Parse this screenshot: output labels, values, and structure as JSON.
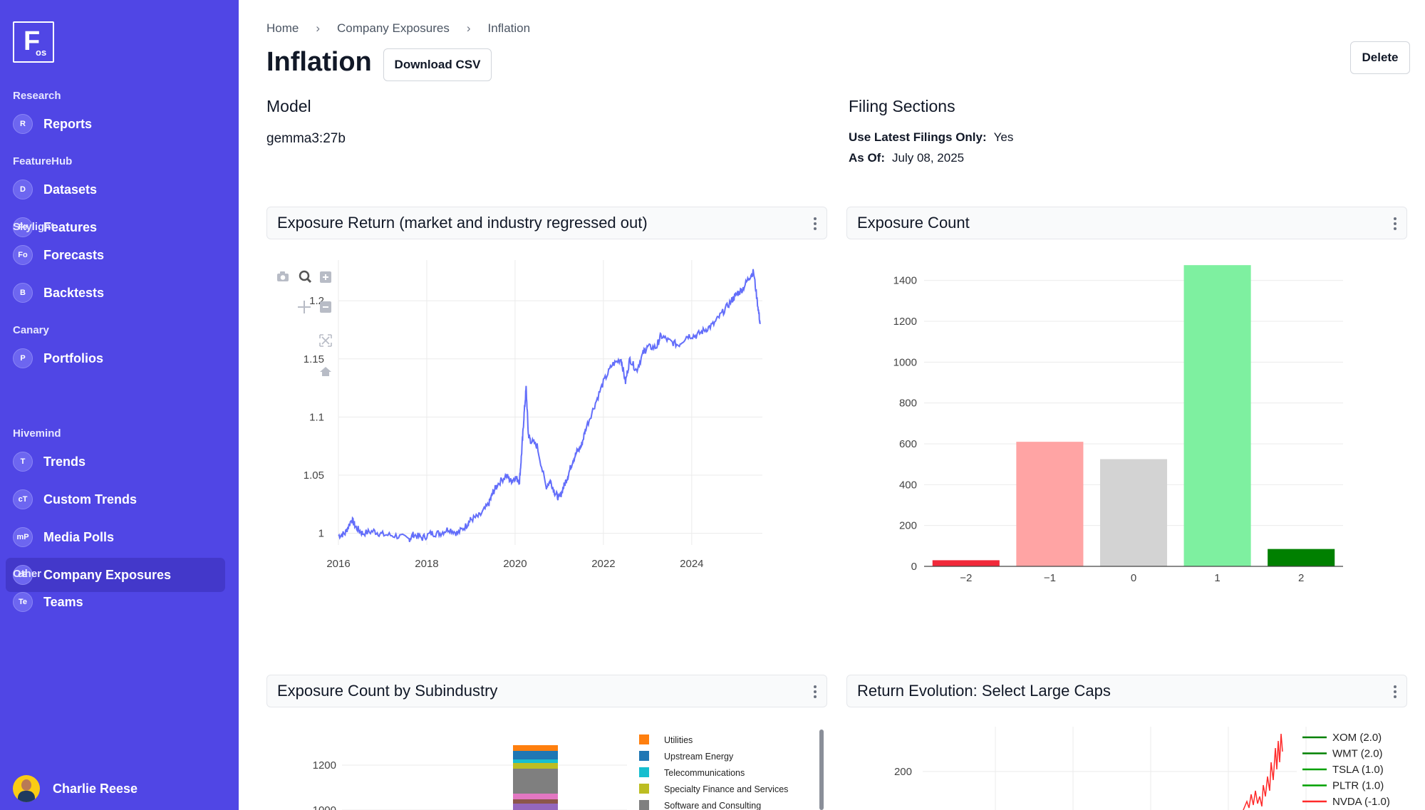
{
  "sidebar": {
    "logo": {
      "big": "F",
      "small": "os"
    },
    "sections": [
      {
        "label": "Research",
        "items": [
          {
            "badge": "R",
            "label": "Reports"
          }
        ]
      },
      {
        "label": "FeatureHub",
        "items": [
          {
            "badge": "D",
            "label": "Datasets"
          },
          {
            "badge": "Fe",
            "label": "Features"
          }
        ]
      },
      {
        "label": "Skylight",
        "items": [
          {
            "badge": "Fo",
            "label": "Forecasts"
          },
          {
            "badge": "B",
            "label": "Backtests"
          }
        ]
      },
      {
        "label": "Canary",
        "items": [
          {
            "badge": "P",
            "label": "Portfolios"
          }
        ]
      },
      {
        "label": "Hivemind",
        "items": [
          {
            "badge": "T",
            "label": "Trends"
          },
          {
            "badge": "cT",
            "label": "Custom Trends"
          },
          {
            "badge": "mP",
            "label": "Media Polls"
          },
          {
            "badge": "cE",
            "label": "Company Exposures"
          }
        ]
      },
      {
        "label": "Other",
        "items": [
          {
            "badge": "Te",
            "label": "Teams"
          }
        ]
      }
    ],
    "active_item": "Company Exposures",
    "user": {
      "name": "Charlie Reese"
    }
  },
  "breadcrumb": [
    "Home",
    "Company Exposures",
    "Inflation"
  ],
  "page": {
    "title": "Inflation",
    "download_label": "Download CSV",
    "delete_label": "Delete"
  },
  "model": {
    "heading": "Model",
    "value": "gemma3:27b"
  },
  "filing": {
    "heading": "Filing Sections",
    "latest_label": "Use Latest Filings Only:",
    "latest_value": "Yes",
    "asof_label": "As Of:",
    "asof_value": "July 08, 2025"
  },
  "cards": {
    "return": "Exposure Return (market and industry regressed out)",
    "count": "Exposure Count",
    "subindustry": "Exposure Count by Subindustry",
    "evolution": "Return Evolution: Select Large Caps"
  },
  "chart_data": [
    {
      "type": "line",
      "title": "Exposure Return (market and industry regressed out)",
      "xlabel": "",
      "ylabel": "",
      "xlim": [
        2016,
        2025.6
      ],
      "ylim": [
        0.99,
        1.235
      ],
      "x_ticks": [
        "2016",
        "2018",
        "2020",
        "2022",
        "2024"
      ],
      "y_ticks": [
        "1",
        "1.05",
        "1.1",
        "1.15",
        "1.2"
      ],
      "color": "#636efa",
      "series": [
        {
          "x": [
            2016.0,
            2016.15,
            2016.3,
            2016.4,
            2016.55,
            2016.8,
            2017.0,
            2017.3,
            2017.6,
            2017.7,
            2017.9,
            2018.1,
            2018.3,
            2018.5,
            2018.7,
            2018.9,
            2019.0,
            2019.2,
            2019.4,
            2019.5,
            2019.6,
            2019.8,
            2019.9,
            2020.0,
            2020.1,
            2020.15,
            2020.2,
            2020.25,
            2020.3,
            2020.35,
            2020.5,
            2020.7,
            2020.8,
            2020.9,
            2021.0,
            2021.1,
            2021.2,
            2021.3,
            2021.4,
            2021.5,
            2021.6,
            2021.8,
            2022.0,
            2022.2,
            2022.4,
            2022.5,
            2022.6,
            2022.75,
            2022.9,
            2023.0,
            2023.2,
            2023.3,
            2023.5,
            2023.7,
            2023.9,
            2024.1,
            2024.3,
            2024.5,
            2024.7,
            2024.9,
            2025.0,
            2025.15,
            2025.3,
            2025.4,
            2025.5,
            2025.55
          ],
          "y": [
            0.998,
            1.0,
            1.012,
            1.005,
            1.0,
            1.002,
            0.999,
            0.998,
            0.995,
            0.999,
            0.996,
            1.0,
            1.0,
            1.004,
            1.0,
            1.007,
            1.012,
            1.015,
            1.025,
            1.035,
            1.042,
            1.05,
            1.045,
            1.048,
            1.045,
            1.07,
            1.1,
            1.125,
            1.085,
            1.08,
            1.075,
            1.04,
            1.045,
            1.035,
            1.03,
            1.04,
            1.05,
            1.062,
            1.07,
            1.075,
            1.09,
            1.11,
            1.13,
            1.145,
            1.15,
            1.13,
            1.15,
            1.14,
            1.155,
            1.16,
            1.16,
            1.17,
            1.165,
            1.162,
            1.17,
            1.17,
            1.175,
            1.18,
            1.19,
            1.2,
            1.205,
            1.21,
            1.22,
            1.225,
            1.195,
            1.18
          ]
        }
      ]
    },
    {
      "type": "bar",
      "title": "Exposure Count",
      "categories": [
        "−2",
        "−1",
        "0",
        "1",
        "2"
      ],
      "values": [
        30,
        610,
        525,
        1475,
        85
      ],
      "colors": [
        "#f1293a",
        "#ffa4a4",
        "#d3d3d3",
        "#7ef0a0",
        "#008000"
      ],
      "ylim": [
        0,
        1500
      ],
      "y_ticks": [
        0,
        200,
        400,
        600,
        800,
        1000,
        1200,
        1400
      ]
    },
    {
      "type": "bar",
      "title": "Exposure Count by Subindustry",
      "y_ticks": [
        "1000",
        "1200"
      ],
      "legend": [
        {
          "name": "Utilities",
          "color": "#ff7f0e"
        },
        {
          "name": "Upstream Energy",
          "color": "#1f77b4"
        },
        {
          "name": "Telecommunications",
          "color": "#17becf"
        },
        {
          "name": "Specialty Finance and Services",
          "color": "#bcbd22"
        },
        {
          "name": "Software and Consulting",
          "color": "#7f7f7f"
        }
      ]
    },
    {
      "type": "line",
      "title": "Return Evolution: Select Large Caps",
      "y_ticks": [
        "200"
      ],
      "legend": [
        {
          "name": "XOM (2.0)",
          "color": "#008000"
        },
        {
          "name": "WMT (2.0)",
          "color": "#008000"
        },
        {
          "name": "TSLA (1.0)",
          "color": "#00a000"
        },
        {
          "name": "PLTR (1.0)",
          "color": "#00a000"
        },
        {
          "name": "NVDA (-1.0)",
          "color": "#ff2a2a"
        }
      ]
    }
  ]
}
